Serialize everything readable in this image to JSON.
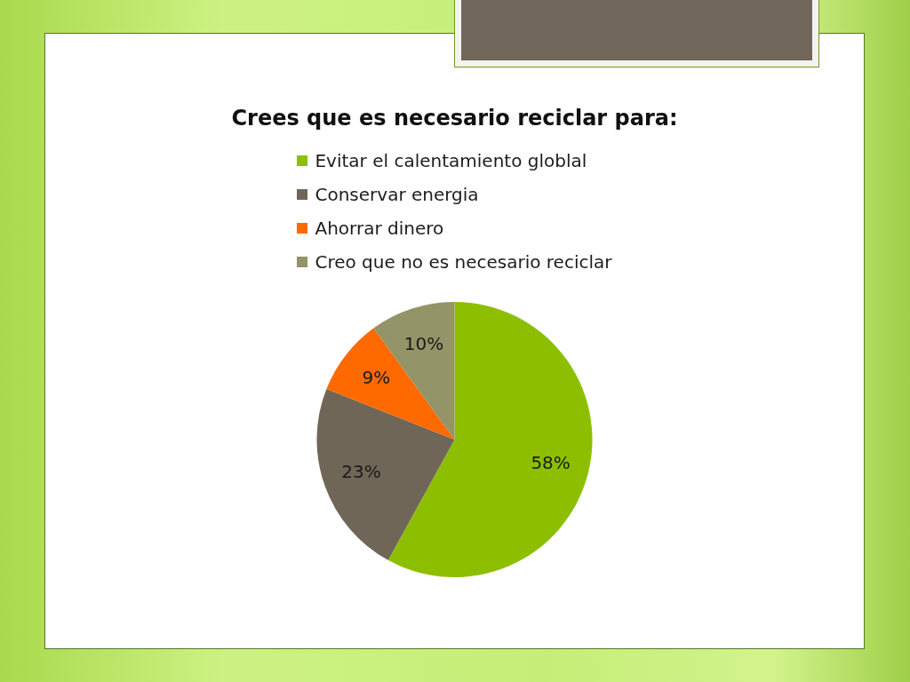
{
  "chart_data": {
    "type": "pie",
    "title": "Crees que es necesario reciclar para:",
    "categories": [
      "Evitar el calentamiento globlal",
      "Conservar energia",
      "Ahorrar dinero",
      "Creo que no es necesario reciclar"
    ],
    "values": [
      58,
      23,
      9,
      10
    ],
    "colors": [
      "#8dbf00",
      "#6f6657",
      "#ff6a00",
      "#939468"
    ],
    "value_labels": [
      "58%",
      "23%",
      "9%",
      "10%"
    ],
    "legend": "top"
  }
}
